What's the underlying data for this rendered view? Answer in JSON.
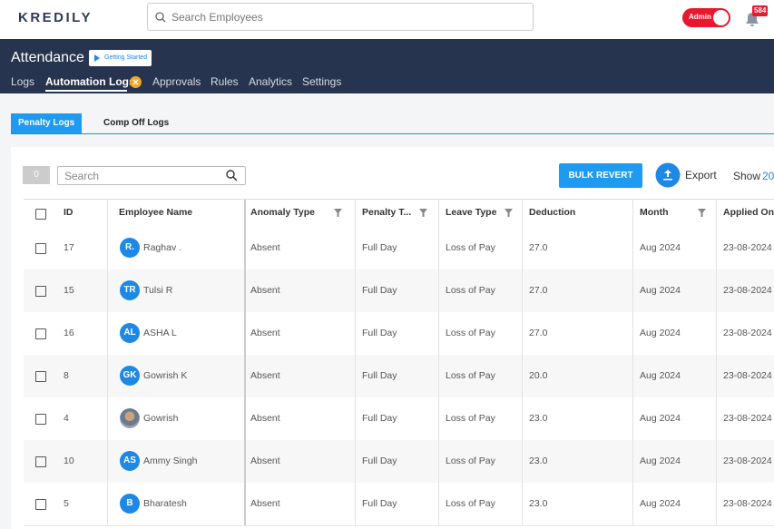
{
  "header": {
    "logo": "KREDILY",
    "search_placeholder": "Search Employees",
    "role_toggle": "Admin",
    "notification_count": "584"
  },
  "nav": {
    "title": "Attendance",
    "getting_started": "Getting Started",
    "tabs": [
      "Logs",
      "Automation Logs",
      "Approvals",
      "Rules",
      "Analytics",
      "Settings"
    ],
    "active_tab": 1
  },
  "subtabs": {
    "items": [
      "Penalty Logs",
      "Comp Off Logs"
    ],
    "active": 0
  },
  "toolbar": {
    "selected_count": "0",
    "search_placeholder": "Search",
    "bulk_revert": "BULK REVERT",
    "export": "Export",
    "show": "Show",
    "show_value": "20"
  },
  "table": {
    "columns": [
      "ID",
      "Employee Name",
      "Anomaly Type",
      "Penalty T...",
      "Leave Type",
      "Deduction",
      "Month",
      "Applied On"
    ],
    "rows": [
      {
        "id": "17",
        "avatar": "R.",
        "name": "Raghav .",
        "anomaly": "Absent",
        "penalty": "Full Day",
        "leave": "Loss of Pay",
        "deduction": "27.0",
        "month": "Aug 2024",
        "applied": "23-08-2024"
      },
      {
        "id": "15",
        "avatar": "TR",
        "name": "Tulsi R",
        "anomaly": "Absent",
        "penalty": "Full Day",
        "leave": "Loss of Pay",
        "deduction": "27.0",
        "month": "Aug 2024",
        "applied": "23-08-2024"
      },
      {
        "id": "16",
        "avatar": "AL",
        "name": "ASHA L",
        "anomaly": "Absent",
        "penalty": "Full Day",
        "leave": "Loss of Pay",
        "deduction": "27.0",
        "month": "Aug 2024",
        "applied": "23-08-2024"
      },
      {
        "id": "8",
        "avatar": "GK",
        "name": "Gowrish K",
        "anomaly": "Absent",
        "penalty": "Full Day",
        "leave": "Loss of Pay",
        "deduction": "20.0",
        "month": "Aug 2024",
        "applied": "23-08-2024"
      },
      {
        "id": "4",
        "name": "Gowrish",
        "anomaly": "Absent",
        "penalty": "Full Day",
        "leave": "Loss of Pay",
        "deduction": "23.0",
        "month": "Aug 2024",
        "applied": "23-08-2024"
      },
      {
        "id": "10",
        "avatar": "AS",
        "name": "Ammy Singh",
        "anomaly": "Absent",
        "penalty": "Full Day",
        "leave": "Loss of Pay",
        "deduction": "23.0",
        "month": "Aug 2024",
        "applied": "23-08-2024"
      },
      {
        "id": "5",
        "avatar": "B",
        "name": "Bharatesh",
        "anomaly": "Absent",
        "penalty": "Full Day",
        "leave": "Loss of Pay",
        "deduction": "23.0",
        "month": "Aug 2024",
        "applied": "23-08-2024"
      }
    ]
  }
}
